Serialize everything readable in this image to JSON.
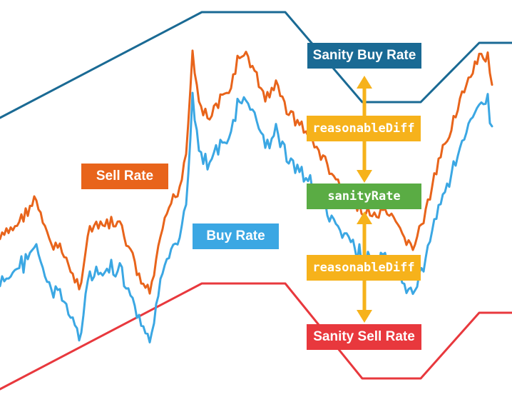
{
  "labels": {
    "sanity_buy_rate": "Sanity Buy Rate",
    "sanity_sell_rate": "Sanity Sell Rate",
    "sanity_rate": "sanityRate",
    "reasonable_diff_top": "reasonableDiff",
    "reasonable_diff_bottom": "reasonableDiff",
    "sell_rate": "Sell Rate",
    "buy_rate": "Buy Rate"
  },
  "colors": {
    "sanity_buy": "#1a6a94",
    "sanity_sell": "#e8383d",
    "sell_rate": "#e8641b",
    "buy_rate": "#3ba7e3",
    "reasonable_diff": "#f6b21b",
    "sanity_rate": "#5aac44",
    "arrow": "#f6b21b"
  }
}
